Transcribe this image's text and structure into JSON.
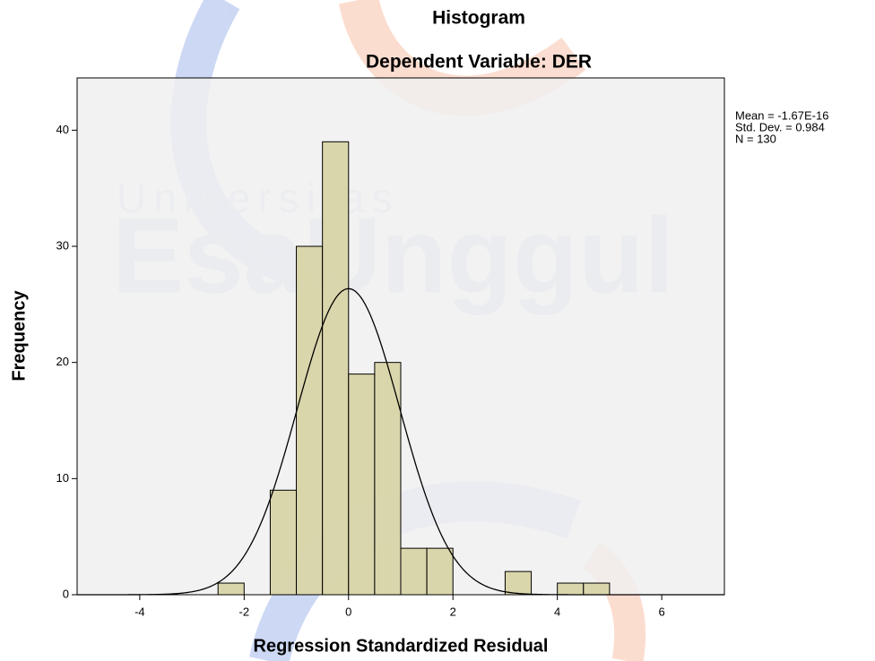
{
  "chart_data": {
    "type": "histogram",
    "title": "Histogram",
    "subtitle": "Dependent Variable: DER",
    "xlabel": "Regression Standardized Residual",
    "ylabel": "Frequency",
    "bins": [
      -2.5,
      -2,
      -1.5,
      -1,
      -0.5,
      0,
      0.5,
      1,
      1.5,
      2,
      2.5,
      3,
      3.5,
      4,
      4.5,
      5
    ],
    "counts": [
      1,
      0,
      9,
      30,
      39,
      19,
      20,
      4,
      4,
      0,
      0,
      2,
      0,
      1,
      1
    ],
    "color": "#d6d1a0",
    "xlim": [
      -5.2,
      7.2
    ],
    "xticks": [
      -4,
      -2,
      0,
      2,
      4,
      6
    ],
    "ylim": [
      0,
      44.5
    ],
    "yticks": [
      0,
      10,
      20,
      30,
      40
    ],
    "stats": [
      {
        "value": -1.67e-16,
        "label": "Mean = -1.67E-16"
      },
      {
        "value": 0.984,
        "label": "Std. Dev. = 0.984"
      },
      {
        "value": 130,
        "label": "N = 130"
      }
    ],
    "normal_curve": true,
    "watermark": [
      "Universitas",
      "EsaUnggul"
    ]
  }
}
